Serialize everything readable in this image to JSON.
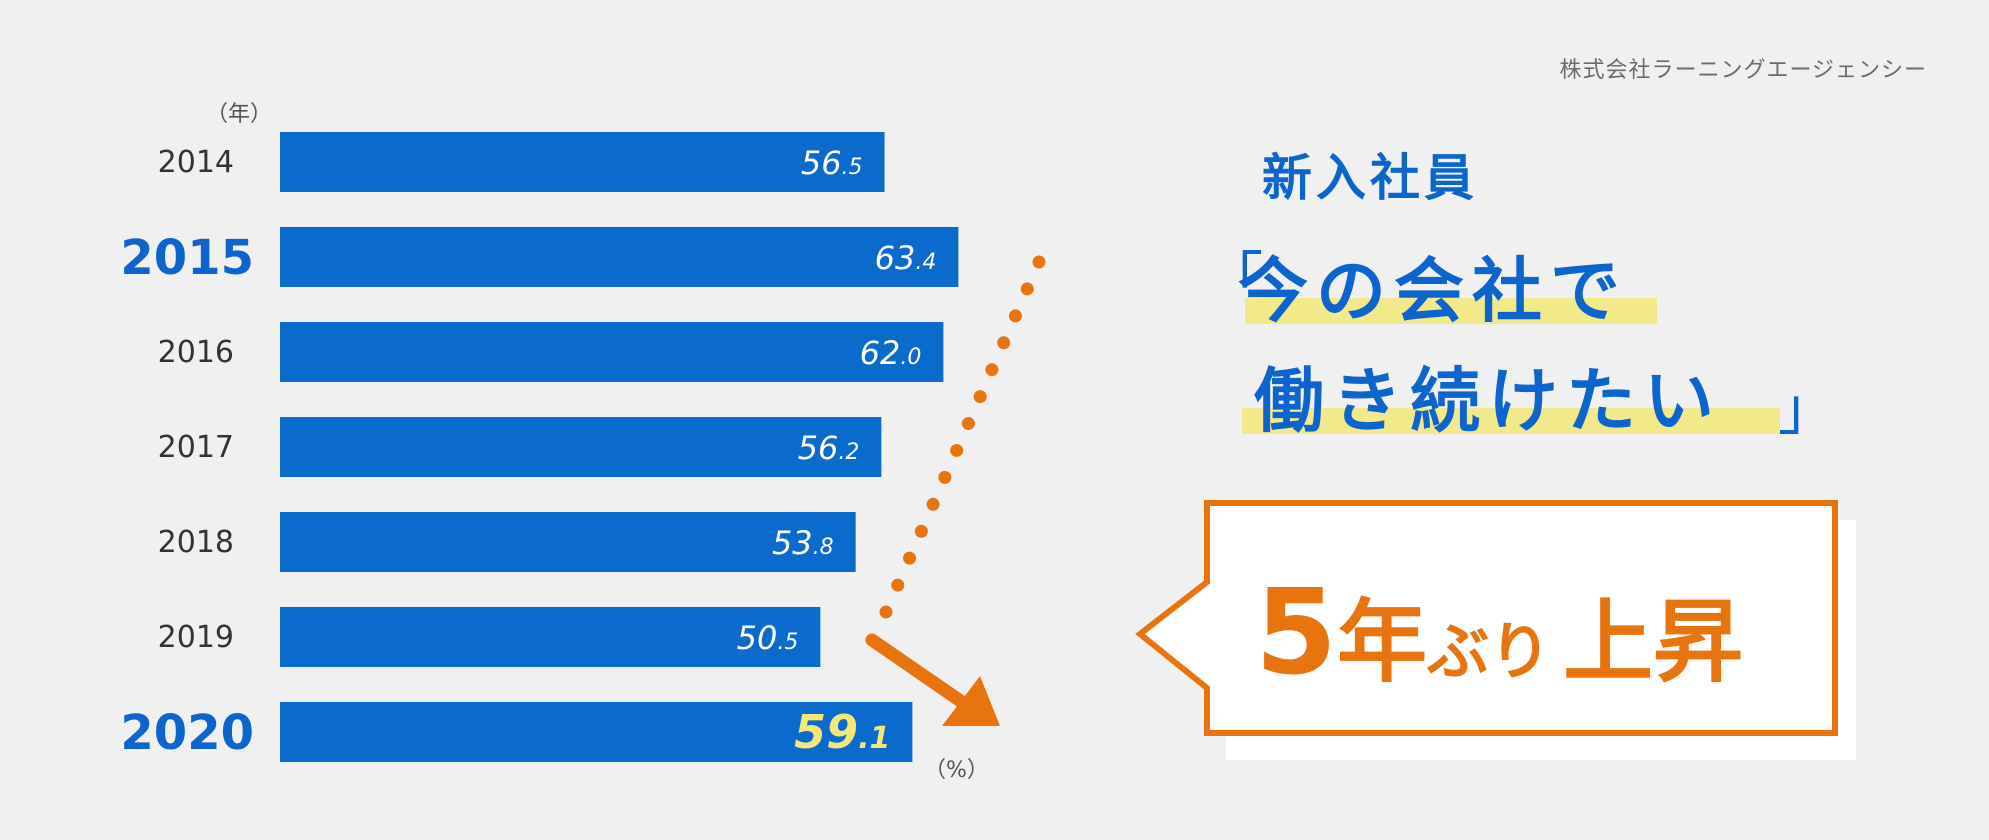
{
  "source": "株式会社ラーニングエージェンシー",
  "units": {
    "year": "（年）",
    "percent": "（%）"
  },
  "headline": {
    "subject": "新入社員",
    "bracket_open": "「",
    "quote_line1": "今の会社で",
    "quote_line2": "働き続けたい",
    "bracket_close": "」"
  },
  "callout": {
    "number": "5",
    "kanji1": "年",
    "kana": "ぶり",
    "kanji2": "上昇"
  },
  "colors": {
    "bar": "#0a6bcd",
    "accent_orange": "#e8740f",
    "highlight_yellow": "#f1e98a",
    "value_highlight": "#f2e77a",
    "heading_blue": "#0c64cc"
  },
  "icons": {
    "trend": "dotted-trend-arrow",
    "callout": "speech-bubble"
  },
  "chart_data": {
    "type": "bar",
    "orientation": "horizontal",
    "categories": [
      "2014",
      "2015",
      "2016",
      "2017",
      "2018",
      "2019",
      "2020"
    ],
    "values": [
      56.5,
      63.4,
      62.0,
      56.2,
      53.8,
      50.5,
      59.1
    ],
    "labels": [
      {
        "int": "56",
        "dec": ".5"
      },
      {
        "int": "63",
        "dec": ".4"
      },
      {
        "int": "62",
        "dec": ".0"
      },
      {
        "int": "56",
        "dec": ".2"
      },
      {
        "int": "53",
        "dec": ".8"
      },
      {
        "int": "50",
        "dec": ".5"
      },
      {
        "int": "59",
        "dec": ".1"
      }
    ],
    "emphasized_categories": [
      "2015",
      "2020"
    ],
    "highlighted_value_category": "2020",
    "xlabel": "（%）",
    "ylabel": "（年）",
    "xlim": [
      0,
      90
    ],
    "grid": false,
    "legend": "none"
  }
}
